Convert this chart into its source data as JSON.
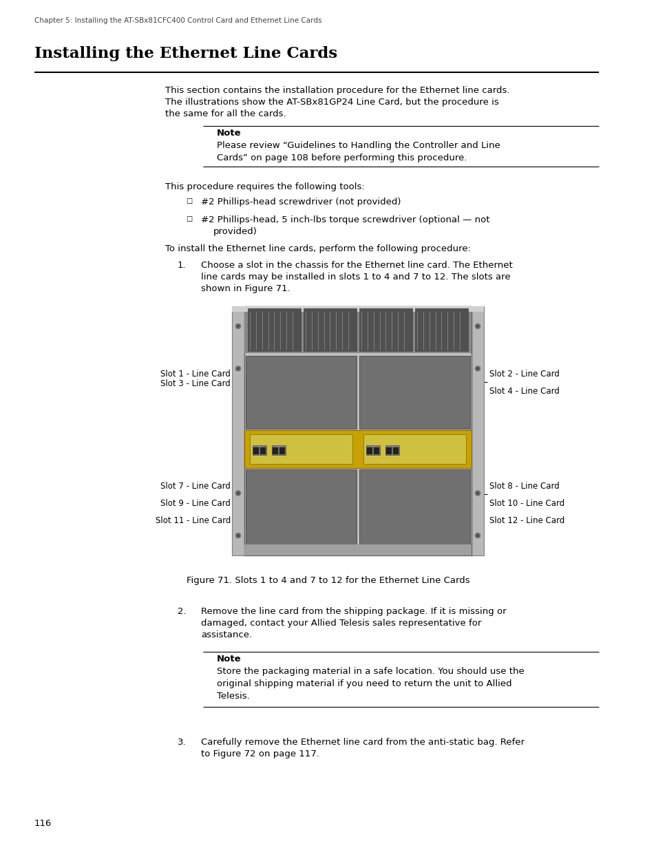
{
  "page_header": "Chapter 5: Installing the AT-SBx81CFC400 Control Card and Ethernet Line Cards",
  "section_title": "Installing the Ethernet Line Cards",
  "intro_text_line1": "This section contains the installation procedure for the Ethernet line cards.",
  "intro_text_line2": "The illustrations show the AT-SBx81GP24 Line Card, but the procedure is",
  "intro_text_line3": "the same for all the cards.",
  "note1_label": "Note",
  "note1_line1": "Please review “Guidelines to Handling the Controller and Line",
  "note1_line2": "Cards” on page 108 before performing this procedure.",
  "tools_intro": "This procedure requires the following tools:",
  "bullet1": "#2 Phillips-head screwdriver (not provided)",
  "bullet2_line1": "#2 Phillips-head, 5 inch-lbs torque screwdriver (optional — not",
  "bullet2_line2": "provided)",
  "procedure_intro": "To install the Ethernet line cards, perform the following procedure:",
  "step1_line1": "Choose a slot in the chassis for the Ethernet line card. The Ethernet",
  "step1_line2": "line cards may be installed in slots 1 to 4 and 7 to 12. The slots are",
  "step1_line3": "shown in Figure 71.",
  "left_labels_upper": [
    "Slot 1 - Line Card",
    "Slot 3 - Line Card"
  ],
  "left_labels_lower": [
    "Slot 7 - Line Card",
    "Slot 9 - Line Card",
    "Slot 11 - Line Card"
  ],
  "right_labels_upper": [
    "Slot 2 - Line Card",
    "Slot 4 - Line Card"
  ],
  "right_labels_lower": [
    "Slot 8 - Line Card",
    "Slot 10 - Line Card",
    "Slot 12 - Line Card"
  ],
  "figure_caption": "Figure 71. Slots 1 to 4 and 7 to 12 for the Ethernet Line Cards",
  "step2_line1": "Remove the line card from the shipping package. If it is missing or",
  "step2_line2": "damaged, contact your Allied Telesis sales representative for",
  "step2_line3": "assistance.",
  "note2_label": "Note",
  "note2_line1": "Store the packaging material in a safe location. You should use the",
  "note2_line2": "original shipping material if you need to return the unit to Allied",
  "note2_line3": "Telesis.",
  "step3_line1": "Carefully remove the Ethernet line card from the anti-static bag. Refer",
  "step3_line2": "to Figure 72 on page 117.",
  "page_number": "116",
  "bg_color": "#ffffff",
  "text_color": "#000000",
  "header_color": "#444444",
  "chassis_body_color": "#c0c0c0",
  "chassis_dark": "#888888",
  "slot_color": "#707070",
  "slot_edge": "#505050",
  "strip_color": "#c8a000",
  "strip_edge": "#806000",
  "ear_color": "#b8b8b8",
  "ear_edge": "#808080",
  "top_module_color": "#505050",
  "top_module_edge": "#404040",
  "top_module_bg": "#707070"
}
